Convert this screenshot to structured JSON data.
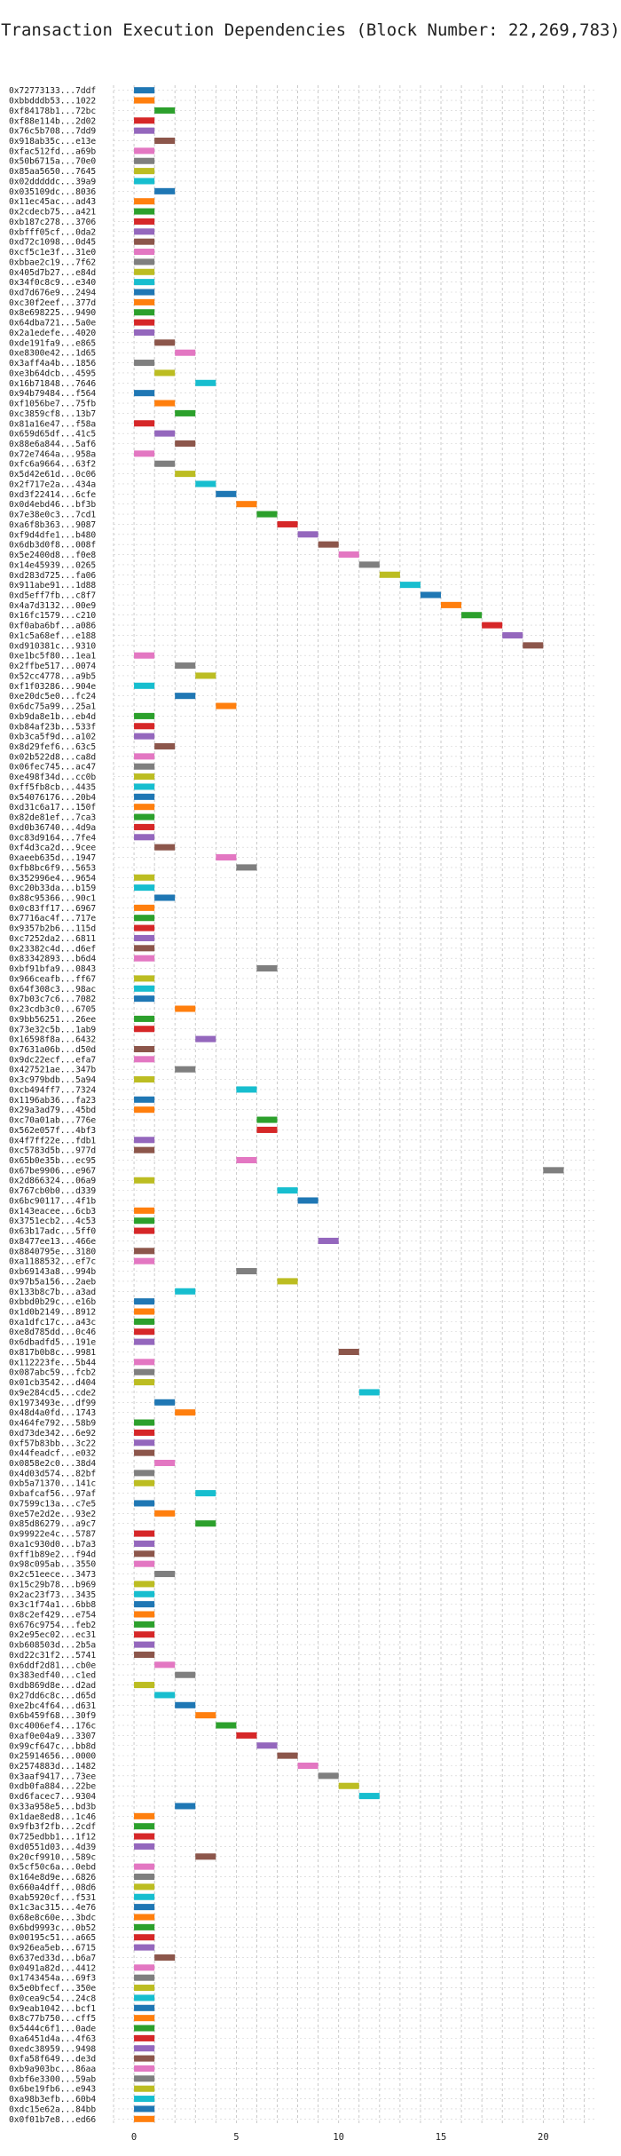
{
  "chart_data": {
    "type": "bar",
    "orientation": "horizontal",
    "title": "Transaction Execution Dependencies (Block Number: 22,269,783)",
    "xlabel": "",
    "ylabel": "",
    "xlim": [
      -1,
      22.5
    ],
    "xticks": [
      0,
      5,
      10,
      15,
      20
    ],
    "grid": true,
    "legend": "none",
    "bar_width_units": 1,
    "palette": [
      "#1f77b4",
      "#ff7f0e",
      "#2ca02c",
      "#d62728",
      "#9467bd",
      "#8c564b",
      "#e377c2",
      "#7f7f7f",
      "#bcbd22",
      "#17becf"
    ],
    "transactions": [
      {
        "label": "0x72773133...7ddf",
        "x": 0
      },
      {
        "label": "0xbbdddb53...1022",
        "x": 0
      },
      {
        "label": "0xf84178b1...72bc",
        "x": 1
      },
      {
        "label": "0xf88e114b...2d02",
        "x": 0
      },
      {
        "label": "0x76c5b708...7dd9",
        "x": 0
      },
      {
        "label": "0x918ab35c...e13e",
        "x": 1
      },
      {
        "label": "0xfac512fd...a69b",
        "x": 0
      },
      {
        "label": "0x50b6715a...70e0",
        "x": 0
      },
      {
        "label": "0x85aa5650...7645",
        "x": 0
      },
      {
        "label": "0x02dddddc...39a9",
        "x": 0
      },
      {
        "label": "0x035109dc...8036",
        "x": 1
      },
      {
        "label": "0x11ec45ac...ad43",
        "x": 0
      },
      {
        "label": "0x2cdecb75...a421",
        "x": 0
      },
      {
        "label": "0xb187c278...3706",
        "x": 0
      },
      {
        "label": "0xbfff05cf...0da2",
        "x": 0
      },
      {
        "label": "0xd72c1098...0d45",
        "x": 0
      },
      {
        "label": "0xcf5c1e3f...31e0",
        "x": 0
      },
      {
        "label": "0xbbae2c19...7f62",
        "x": 0
      },
      {
        "label": "0x405d7b27...e84d",
        "x": 0
      },
      {
        "label": "0x34f0c8c9...e340",
        "x": 0
      },
      {
        "label": "0xd7d676e9...2494",
        "x": 0
      },
      {
        "label": "0xc30f2eef...377d",
        "x": 0
      },
      {
        "label": "0x8e698225...9490",
        "x": 0
      },
      {
        "label": "0x64dba721...5a0e",
        "x": 0
      },
      {
        "label": "0x2a1edefe...4020",
        "x": 0
      },
      {
        "label": "0xde191fa9...e865",
        "x": 1
      },
      {
        "label": "0xe8300e42...1d65",
        "x": 2
      },
      {
        "label": "0x3aff4a4b...1856",
        "x": 0
      },
      {
        "label": "0xe3b64dcb...4595",
        "x": 1
      },
      {
        "label": "0x16b71848...7646",
        "x": 3
      },
      {
        "label": "0x94b79484...f564",
        "x": 0
      },
      {
        "label": "0xf1056be7...75fb",
        "x": 1
      },
      {
        "label": "0xc3859cf8...13b7",
        "x": 2
      },
      {
        "label": "0x81a16e47...f58a",
        "x": 0
      },
      {
        "label": "0x659d65df...41c5",
        "x": 1
      },
      {
        "label": "0x88e6a844...5af6",
        "x": 2
      },
      {
        "label": "0x72e7464a...958a",
        "x": 0
      },
      {
        "label": "0xfc6a9664...63f2",
        "x": 1
      },
      {
        "label": "0x5d42e61d...0c06",
        "x": 2
      },
      {
        "label": "0x2f717e2a...434a",
        "x": 3
      },
      {
        "label": "0xd3f22414...6cfe",
        "x": 4
      },
      {
        "label": "0x0d4ebd46...bf3b",
        "x": 5
      },
      {
        "label": "0x7e38e0c3...7cd1",
        "x": 6
      },
      {
        "label": "0xa6f8b363...9087",
        "x": 7
      },
      {
        "label": "0xf9d4dfe1...b480",
        "x": 8
      },
      {
        "label": "0x6db3d0f8...008f",
        "x": 9
      },
      {
        "label": "0x5e2400d8...f0e8",
        "x": 10
      },
      {
        "label": "0x14e45939...0265",
        "x": 11
      },
      {
        "label": "0xd283d725...fa06",
        "x": 12
      },
      {
        "label": "0x911abe91...1d88",
        "x": 13
      },
      {
        "label": "0xd5eff7fb...c8f7",
        "x": 14
      },
      {
        "label": "0x4a7d3132...00e9",
        "x": 15
      },
      {
        "label": "0x16fc1579...c210",
        "x": 16
      },
      {
        "label": "0xf0aba6bf...a086",
        "x": 17
      },
      {
        "label": "0x1c5a68ef...e188",
        "x": 18
      },
      {
        "label": "0xd910381c...9310",
        "x": 19
      },
      {
        "label": "0xe1bc5f80...1ea1",
        "x": 0
      },
      {
        "label": "0x2ffbe517...0074",
        "x": 2
      },
      {
        "label": "0x52cc4778...a9b5",
        "x": 3
      },
      {
        "label": "0xf1f03286...904e",
        "x": 0
      },
      {
        "label": "0xe20dc5e0...fc24",
        "x": 2
      },
      {
        "label": "0x6dc75a99...25a1",
        "x": 4
      },
      {
        "label": "0xb9da8e1b...eb4d",
        "x": 0
      },
      {
        "label": "0xb84af23b...533f",
        "x": 0
      },
      {
        "label": "0xb3ca5f9d...a102",
        "x": 0
      },
      {
        "label": "0x8d29fef6...63c5",
        "x": 1
      },
      {
        "label": "0x02b522d8...ca8d",
        "x": 0
      },
      {
        "label": "0x06fec745...ac47",
        "x": 0
      },
      {
        "label": "0xe498f34d...cc0b",
        "x": 0
      },
      {
        "label": "0xff5fb8cb...4435",
        "x": 0
      },
      {
        "label": "0x54076176...20b4",
        "x": 0
      },
      {
        "label": "0xd31c6a17...150f",
        "x": 0
      },
      {
        "label": "0x82de81ef...7ca3",
        "x": 0
      },
      {
        "label": "0xd0b36740...4d9a",
        "x": 0
      },
      {
        "label": "0xc83d9164...7fe4",
        "x": 0
      },
      {
        "label": "0xf4d3ca2d...9cee",
        "x": 1
      },
      {
        "label": "0xaeeb635d...1947",
        "x": 4
      },
      {
        "label": "0xfb8bc6f9...5653",
        "x": 5
      },
      {
        "label": "0x352996e4...9654",
        "x": 0
      },
      {
        "label": "0xc20b33da...b159",
        "x": 0
      },
      {
        "label": "0x88c95366...90c1",
        "x": 1
      },
      {
        "label": "0x0c83ff17...6967",
        "x": 0
      },
      {
        "label": "0x7716ac4f...717e",
        "x": 0
      },
      {
        "label": "0x9357b2b6...115d",
        "x": 0
      },
      {
        "label": "0xc7252da2...6811",
        "x": 0
      },
      {
        "label": "0x23382c4d...d6ef",
        "x": 0
      },
      {
        "label": "0x83342893...b6d4",
        "x": 0
      },
      {
        "label": "0xbf91bfa9...0843",
        "x": 6
      },
      {
        "label": "0x966ceafb...ff67",
        "x": 0
      },
      {
        "label": "0x64f308c3...98ac",
        "x": 0
      },
      {
        "label": "0x7b03c7c6...7082",
        "x": 0
      },
      {
        "label": "0x23cdb3c0...6705",
        "x": 2
      },
      {
        "label": "0x9bb56251...26ee",
        "x": 0
      },
      {
        "label": "0x73e32c5b...1ab9",
        "x": 0
      },
      {
        "label": "0x16598f8a...6432",
        "x": 3
      },
      {
        "label": "0x7631a06b...d50d",
        "x": 0
      },
      {
        "label": "0x9dc22ecf...efa7",
        "x": 0
      },
      {
        "label": "0x427521ae...347b",
        "x": 2
      },
      {
        "label": "0x3c979bdb...5a94",
        "x": 0
      },
      {
        "label": "0xcb494ff7...7324",
        "x": 5
      },
      {
        "label": "0x1196ab36...fa23",
        "x": 0
      },
      {
        "label": "0x29a3ad79...45bd",
        "x": 0
      },
      {
        "label": "0xc70a01ab...776e",
        "x": 6
      },
      {
        "label": "0x562e057f...4bf3",
        "x": 6
      },
      {
        "label": "0x4f7ff22e...fdb1",
        "x": 0
      },
      {
        "label": "0xc5783d5b...977d",
        "x": 0
      },
      {
        "label": "0x65b0e35b...ec95",
        "x": 5
      },
      {
        "label": "0x67be9906...e967",
        "x": 20
      },
      {
        "label": "0x2d866324...06a9",
        "x": 0
      },
      {
        "label": "0x767cb0b0...d339",
        "x": 7
      },
      {
        "label": "0x6bc90117...4f1b",
        "x": 8
      },
      {
        "label": "0x143eacee...6cb3",
        "x": 0
      },
      {
        "label": "0x3751ecb2...4c53",
        "x": 0
      },
      {
        "label": "0x63b17adc...5ff0",
        "x": 0
      },
      {
        "label": "0x8477ee13...466e",
        "x": 9
      },
      {
        "label": "0x8840795e...3180",
        "x": 0
      },
      {
        "label": "0xa1188532...ef7c",
        "x": 0
      },
      {
        "label": "0xb69143a8...994b",
        "x": 5
      },
      {
        "label": "0x97b5a156...2aeb",
        "x": 7
      },
      {
        "label": "0x133b8c7b...a3ad",
        "x": 2
      },
      {
        "label": "0xbbd0b29c...e16b",
        "x": 0
      },
      {
        "label": "0x1d0b2149...8912",
        "x": 0
      },
      {
        "label": "0xa1dfc17c...a43c",
        "x": 0
      },
      {
        "label": "0xe8d785dd...0c46",
        "x": 0
      },
      {
        "label": "0x6dbadfd5...191e",
        "x": 0
      },
      {
        "label": "0x817b0b8c...9981",
        "x": 10
      },
      {
        "label": "0x112223fe...5b44",
        "x": 0
      },
      {
        "label": "0x087abc59...fcb2",
        "x": 0
      },
      {
        "label": "0x01cb3542...d404",
        "x": 0
      },
      {
        "label": "0x9e284cd5...cde2",
        "x": 11
      },
      {
        "label": "0x1973493e...df99",
        "x": 1
      },
      {
        "label": "0x48d4a0fd...1743",
        "x": 2
      },
      {
        "label": "0x464fe792...58b9",
        "x": 0
      },
      {
        "label": "0xd73de342...6e92",
        "x": 0
      },
      {
        "label": "0xf57b83bb...3c22",
        "x": 0
      },
      {
        "label": "0x44feadcf...e032",
        "x": 0
      },
      {
        "label": "0x0858e2c0...38d4",
        "x": 1
      },
      {
        "label": "0x4d03d574...82bf",
        "x": 0
      },
      {
        "label": "0xb5a71370...141c",
        "x": 0
      },
      {
        "label": "0xbafcaf56...97af",
        "x": 3
      },
      {
        "label": "0x7599c13a...c7e5",
        "x": 0
      },
      {
        "label": "0xe57e2d2e...93e2",
        "x": 1
      },
      {
        "label": "0x85d86279...a9c7",
        "x": 3
      },
      {
        "label": "0x99922e4c...5787",
        "x": 0
      },
      {
        "label": "0xa1c930d0...b7a3",
        "x": 0
      },
      {
        "label": "0xff1b89e2...f94d",
        "x": 0
      },
      {
        "label": "0x98c095ab...3550",
        "x": 0
      },
      {
        "label": "0x2c51eece...3473",
        "x": 1
      },
      {
        "label": "0x15c29b78...b969",
        "x": 0
      },
      {
        "label": "0x2ac23f73...3435",
        "x": 0
      },
      {
        "label": "0x3c1f74a1...6bb8",
        "x": 0
      },
      {
        "label": "0x8c2ef429...e754",
        "x": 0
      },
      {
        "label": "0x676c9754...feb2",
        "x": 0
      },
      {
        "label": "0x2e95ec02...ec31",
        "x": 0
      },
      {
        "label": "0xb608503d...2b5a",
        "x": 0
      },
      {
        "label": "0xd22c31f2...5741",
        "x": 0
      },
      {
        "label": "0x6ddf2d81...cb0e",
        "x": 1
      },
      {
        "label": "0x383edf40...c1ed",
        "x": 2
      },
      {
        "label": "0xdb869d8e...d2ad",
        "x": 0
      },
      {
        "label": "0x27dd6c8c...d65d",
        "x": 1
      },
      {
        "label": "0xe2bc4f64...d631",
        "x": 2
      },
      {
        "label": "0x6b459f68...30f9",
        "x": 3
      },
      {
        "label": "0xc4006ef4...176c",
        "x": 4
      },
      {
        "label": "0xaf0e04a9...3307",
        "x": 5
      },
      {
        "label": "0x99cf647c...bb8d",
        "x": 6
      },
      {
        "label": "0x25914656...0000",
        "x": 7
      },
      {
        "label": "0x2574883d...1482",
        "x": 8
      },
      {
        "label": "0x3aaf9417...73ee",
        "x": 9
      },
      {
        "label": "0xdb0fa884...22be",
        "x": 10
      },
      {
        "label": "0xd6facec7...9304",
        "x": 11
      },
      {
        "label": "0x33a958e5...bd3b",
        "x": 2
      },
      {
        "label": "0x1dae8ed8...1c46",
        "x": 0
      },
      {
        "label": "0x9fb3f2fb...2cdf",
        "x": 0
      },
      {
        "label": "0x725edbb1...1f12",
        "x": 0
      },
      {
        "label": "0xd0551d03...4d39",
        "x": 0
      },
      {
        "label": "0x20cf9910...589c",
        "x": 3
      },
      {
        "label": "0x5cf50c6a...0ebd",
        "x": 0
      },
      {
        "label": "0x164e8d9e...6826",
        "x": 0
      },
      {
        "label": "0x660a4dff...08d6",
        "x": 0
      },
      {
        "label": "0xab5920cf...f531",
        "x": 0
      },
      {
        "label": "0x1c3ac315...4e76",
        "x": 0
      },
      {
        "label": "0x68e8c60e...3bdc",
        "x": 0
      },
      {
        "label": "0x6bd9993c...0b52",
        "x": 0
      },
      {
        "label": "0x00195c51...a665",
        "x": 0
      },
      {
        "label": "0x926ea5eb...6715",
        "x": 0
      },
      {
        "label": "0x637ed33d...b6a7",
        "x": 1
      },
      {
        "label": "0x0491a82d...4412",
        "x": 0
      },
      {
        "label": "0x1743454a...69f3",
        "x": 0
      },
      {
        "label": "0x5e0bfecf...350e",
        "x": 0
      },
      {
        "label": "0x0cea9c54...24c8",
        "x": 0
      },
      {
        "label": "0x9eab1042...bcf1",
        "x": 0
      },
      {
        "label": "0x8c77b750...cff5",
        "x": 0
      },
      {
        "label": "0x5444c6f1...0ade",
        "x": 0
      },
      {
        "label": "0xa6451d4a...4f63",
        "x": 0
      },
      {
        "label": "0xedc38959...9498",
        "x": 0
      },
      {
        "label": "0xfa58f649...de3d",
        "x": 0
      },
      {
        "label": "0xb9a903bc...86aa",
        "x": 0
      },
      {
        "label": "0xbf6e3300...59ab",
        "x": 0
      },
      {
        "label": "0x6be19fb6...e943",
        "x": 0
      },
      {
        "label": "0xa98b3efb...60b4",
        "x": 0
      },
      {
        "label": "0xdc15e62a...84bb",
        "x": 0
      },
      {
        "label": "0x0f01b7e8...ed66",
        "x": 0
      }
    ]
  }
}
